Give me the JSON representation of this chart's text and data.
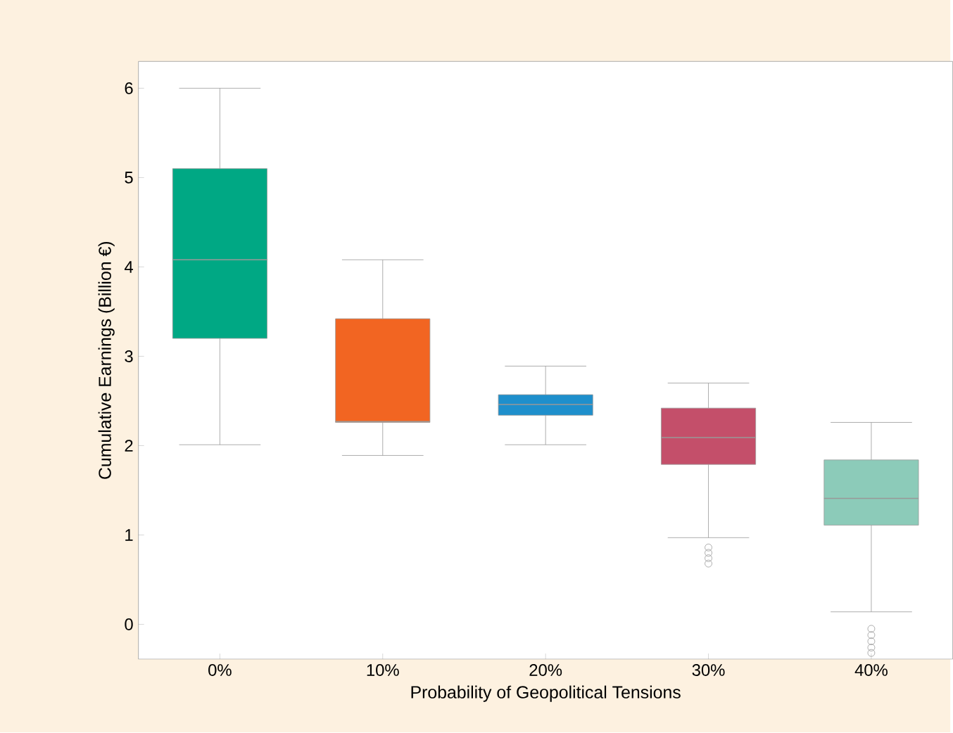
{
  "chart_data": {
    "type": "box",
    "xlabel": "Probability of Geopolitical Tensions",
    "ylabel": "Cumulative Earnings (Billion €)",
    "categories": [
      "0%",
      "10%",
      "20%",
      "30%",
      "40%"
    ],
    "colors": [
      "#00a884",
      "#f26522",
      "#1e8fcc",
      "#c44f6a",
      "#8ccbb9"
    ],
    "boxes": [
      {
        "low": 2.01,
        "q1": 3.2,
        "median": 4.08,
        "q3": 5.1,
        "high": 6.0
      },
      {
        "low": 1.89,
        "q1": 2.26,
        "median": 2.27,
        "q3": 3.42,
        "high": 4.08
      },
      {
        "low": 2.01,
        "q1": 2.34,
        "median": 2.46,
        "q3": 2.57,
        "high": 2.89
      },
      {
        "low": 0.97,
        "q1": 1.79,
        "median": 2.09,
        "q3": 2.42,
        "high": 2.7,
        "outliers": [
          0.86,
          0.8,
          0.74,
          0.68
        ]
      },
      {
        "low": 0.14,
        "q1": 1.11,
        "median": 1.41,
        "q3": 1.84,
        "high": 2.26,
        "outliers": [
          -0.05,
          -0.12,
          -0.19,
          -0.26,
          -0.32
        ]
      }
    ],
    "ylim": [
      -0.39,
      6.3
    ],
    "yticks": [
      0,
      1,
      2,
      3,
      4,
      5,
      6
    ]
  }
}
